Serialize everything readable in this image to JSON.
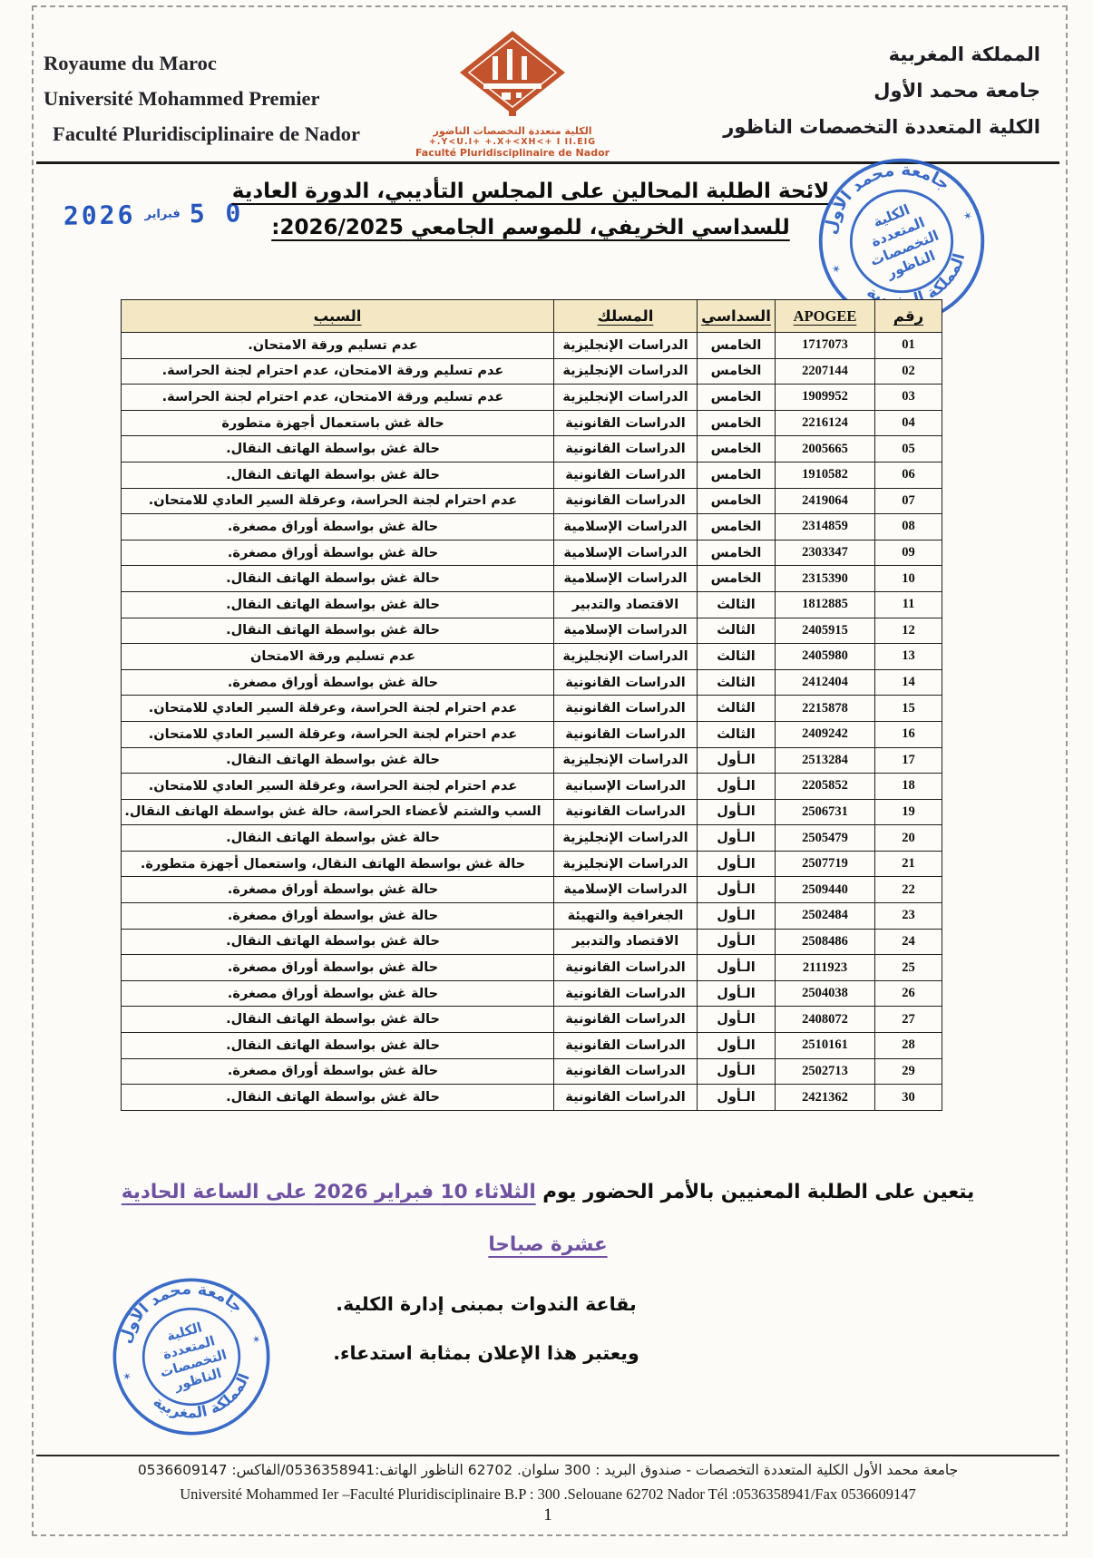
{
  "header": {
    "french_lines": [
      "Royaume du Maroc",
      "Université Mohammed Premier",
      "Faculté Pluridisciplinaire de Nador"
    ],
    "arabic_lines": [
      "المملكة المغربية",
      "جامعة محمد الأول",
      "الكلية المتعددة التخصصات الناظور"
    ],
    "logo_captions": {
      "arabic": "الكلية متعددة التخصصات الناضور",
      "berber": "+.Y<U.I+ +.X+<XH<+ I II.EIG",
      "french": "Faculté Pluridisciplinaire de Nador"
    }
  },
  "date_stamp": {
    "day": "0 5",
    "month": "فبراير",
    "year": "2026"
  },
  "title": {
    "line1": "لائحة الطلبة المحالين على المجلس التأديبي، الدورة العادية",
    "line2": "للسداسي الخريفي، للموسم الجامعي 2026/2025:"
  },
  "stamp": {
    "ring_top": "جامعة محمد الأول",
    "ring_bottom": "المملكة المغربية",
    "star": "✶",
    "center_lines": [
      "الكلية",
      "المتعددة",
      "التخصصات",
      "الناظور"
    ]
  },
  "table": {
    "headers": {
      "num": "رقم",
      "apogee": "APOGEE",
      "semester": "السداسي",
      "track": "المسلك",
      "reason": "السبب"
    },
    "rows": [
      {
        "num": "01",
        "apogee": "1717073",
        "semester": "الخامس",
        "track": "الدراسات الإنجليزية",
        "reason": "عدم تسليم ورقة الامتحان."
      },
      {
        "num": "02",
        "apogee": "2207144",
        "semester": "الخامس",
        "track": "الدراسات الإنجليزية",
        "reason": "عدم تسليم ورقة الامتحان، عدم احترام لجنة الحراسة."
      },
      {
        "num": "03",
        "apogee": "1909952",
        "semester": "الخامس",
        "track": "الدراسات الإنجليزية",
        "reason": "عدم تسليم ورقة الامتحان، عدم احترام لجنة الحراسة."
      },
      {
        "num": "04",
        "apogee": "2216124",
        "semester": "الخامس",
        "track": "الدراسات القانونية",
        "reason": "حالة غش باستعمال أجهزة متطورة"
      },
      {
        "num": "05",
        "apogee": "2005665",
        "semester": "الخامس",
        "track": "الدراسات القانونية",
        "reason": "حالة غش بواسطة الهاتف النقال."
      },
      {
        "num": "06",
        "apogee": "1910582",
        "semester": "الخامس",
        "track": "الدراسات القانونية",
        "reason": "حالة غش بواسطة الهاتف النقال."
      },
      {
        "num": "07",
        "apogee": "2419064",
        "semester": "الخامس",
        "track": "الدراسات القانونية",
        "reason": "عدم احترام لجنة الحراسة، وعرقلة السير العادي للامتحان."
      },
      {
        "num": "08",
        "apogee": "2314859",
        "semester": "الخامس",
        "track": "الدراسات الإسلامية",
        "reason": "حالة غش بواسطة أوراق مصغرة."
      },
      {
        "num": "09",
        "apogee": "2303347",
        "semester": "الخامس",
        "track": "الدراسات الإسلامية",
        "reason": "حالة غش بواسطة أوراق مصغرة."
      },
      {
        "num": "10",
        "apogee": "2315390",
        "semester": "الخامس",
        "track": "الدراسات الإسلامية",
        "reason": "حالة غش بواسطة الهاتف النقال."
      },
      {
        "num": "11",
        "apogee": "1812885",
        "semester": "الثالث",
        "track": "الاقتصاد والتدبير",
        "reason": "حالة غش بواسطة الهاتف النقال."
      },
      {
        "num": "12",
        "apogee": "2405915",
        "semester": "الثالث",
        "track": "الدراسات الإسلامية",
        "reason": "حالة غش بواسطة الهاتف النقال."
      },
      {
        "num": "13",
        "apogee": "2405980",
        "semester": "الثالث",
        "track": "الدراسات الإنجليزية",
        "reason": "عدم تسليم ورقة الامتحان"
      },
      {
        "num": "14",
        "apogee": "2412404",
        "semester": "الثالث",
        "track": "الدراسات القانونية",
        "reason": "حالة غش بواسطة أوراق مصغرة."
      },
      {
        "num": "15",
        "apogee": "2215878",
        "semester": "الثالث",
        "track": "الدراسات القانونية",
        "reason": "عدم احترام لجنة الحراسة، وعرقلة السير العادي للامتحان."
      },
      {
        "num": "16",
        "apogee": "2409242",
        "semester": "الثالث",
        "track": "الدراسات القانونية",
        "reason": "عدم احترام لجنة الحراسة، وعرقلة السير العادي للامتحان."
      },
      {
        "num": "17",
        "apogee": "2513284",
        "semester": "الـأول",
        "track": "الدراسات الإنجليزية",
        "reason": "حالة غش بواسطة الهاتف النقال."
      },
      {
        "num": "18",
        "apogee": "2205852",
        "semester": "الـأول",
        "track": "الدراسات الإسبانية",
        "reason": "عدم احترام لجنة الحراسة، وعرقلة السير العادي للامتحان."
      },
      {
        "num": "19",
        "apogee": "2506731",
        "semester": "الـأول",
        "track": "الدراسات القانونية",
        "reason": "السب والشتم لأعضاء الحراسة، حالة غش بواسطة الهاتف النقال."
      },
      {
        "num": "20",
        "apogee": "2505479",
        "semester": "الـأول",
        "track": "الدراسات الإنجليزية",
        "reason": "حالة غش بواسطة الهاتف النقال."
      },
      {
        "num": "21",
        "apogee": "2507719",
        "semester": "الـأول",
        "track": "الدراسات الإنجليزية",
        "reason": "حالة غش بواسطة الهاتف النقال، واستعمال أجهزة متطورة."
      },
      {
        "num": "22",
        "apogee": "2509440",
        "semester": "الـأول",
        "track": "الدراسات الإسلامية",
        "reason": "حالة غش بواسطة أوراق مصغرة."
      },
      {
        "num": "23",
        "apogee": "2502484",
        "semester": "الـأول",
        "track": "الجغرافية والتهيئة",
        "reason": "حالة غش بواسطة أوراق مصغرة."
      },
      {
        "num": "24",
        "apogee": "2508486",
        "semester": "الـأول",
        "track": "الاقتصاد والتدبير",
        "reason": "حالة غش بواسطة الهاتف النقال."
      },
      {
        "num": "25",
        "apogee": "2111923",
        "semester": "الـأول",
        "track": "الدراسات القانونية",
        "reason": "حالة غش بواسطة أوراق مصغرة."
      },
      {
        "num": "26",
        "apogee": "2504038",
        "semester": "الـأول",
        "track": "الدراسات القانونية",
        "reason": "حالة غش بواسطة أوراق مصغرة."
      },
      {
        "num": "27",
        "apogee": "2408072",
        "semester": "الـأول",
        "track": "الدراسات القانونية",
        "reason": "حالة غش بواسطة الهاتف النقال."
      },
      {
        "num": "28",
        "apogee": "2510161",
        "semester": "الـأول",
        "track": "الدراسات القانونية",
        "reason": "حالة غش بواسطة الهاتف النقال."
      },
      {
        "num": "29",
        "apogee": "2502713",
        "semester": "الـأول",
        "track": "الدراسات القانونية",
        "reason": "حالة غش بواسطة أوراق مصغرة."
      },
      {
        "num": "30",
        "apogee": "2421362",
        "semester": "الـأول",
        "track": "الدراسات القانونية",
        "reason": "حالة غش بواسطة الهاتف النقال."
      }
    ]
  },
  "announcement": {
    "line1_black": "يتعين على الطلبة المعنيين بالأمر الحضور يوم ",
    "line1_purple": "الثلاثاء 10 فبراير 2026 على الساعة الحادية",
    "line2_purple": "عشرة صباحا",
    "line3": "بقاعة الندوات بمبنى إدارة الكلية.",
    "line4": "ويعتبر هذا الإعلان بمثابة استدعاء."
  },
  "footer": {
    "arabic": "جامعة محمد الأول الكلية المتعددة التخصصات - صندوق البريد : 300 سلوان. 62702 الناظور الهاتف:0536358941/الفاكس: 0536609147",
    "french": "Université Mohammed Ier –Faculté Pluridisciplinaire B.P : 300 .Selouane 62702 Nador Tél :0536358941/Fax 0536609147",
    "page_number": "1"
  },
  "colors": {
    "stamp_blue": "#2a5fc4",
    "date_stamp_blue": "#2456bb",
    "accent_purple": "#6f51a1",
    "header_cream": "#f3e8c3",
    "logo_orange": "#c2532c"
  }
}
